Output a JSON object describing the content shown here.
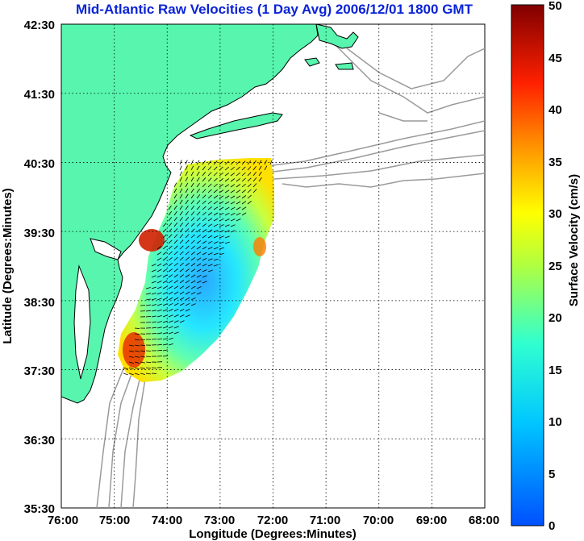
{
  "title": "Mid-Atlantic Raw Velocities (1 Day Avg) 2006/12/01 1800 GMT",
  "map": {
    "xlabel": "Longitude (Degrees:Minutes)",
    "ylabel": "Latitude (Degrees:Minutes)",
    "x_ticks": [
      "76:00",
      "75:00",
      "74:00",
      "73:00",
      "72:00",
      "71:00",
      "70:00",
      "69:00",
      "68:00"
    ],
    "y_ticks": [
      "42:30",
      "41:30",
      "40:30",
      "39:30",
      "38:30",
      "37:30",
      "36:30",
      "35:30"
    ],
    "land_color": "#57f5ae",
    "bathymetry_color": "#9a9a9a",
    "grid": "dotted"
  },
  "colorbar": {
    "label": "Surface Velocity (cm/s)",
    "min": 0,
    "max": 50,
    "ticks": [
      "50",
      "45",
      "40",
      "35",
      "30",
      "25",
      "20",
      "15",
      "10",
      "5",
      "0"
    ],
    "colormap": "jet"
  }
}
